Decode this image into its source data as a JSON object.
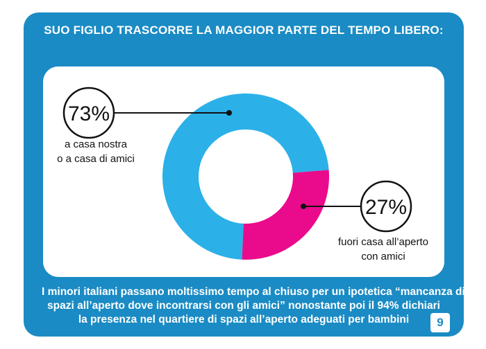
{
  "title": "SUO FIGLIO TRASCORRE LA MAGGIOR PARTE DEL TEMPO LIBERO:",
  "chart_data": {
    "type": "pie",
    "donut": true,
    "slices": [
      {
        "label_lines": [
          "a casa nostra",
          "o a casa di amici"
        ],
        "value": 73,
        "value_label": "73%",
        "color": "#2bb0e8"
      },
      {
        "label_lines": [
          "fuori casa all’aperto",
          "con amici"
        ],
        "value": 27,
        "value_label": "27%",
        "color": "#ea0a8c"
      }
    ]
  },
  "caption": {
    "lines": [
      "I minori italiani passano moltissimo tempo al  chiuso per un ipotetica  “mancanza di",
      "spazi all’aperto dove incontrarsi con gli amici”  nonostante poi il 94% dichiari",
      "la presenza nel  quartiere di spazi all’aperto adeguati per  bambini"
    ]
  },
  "page_number": "9"
}
